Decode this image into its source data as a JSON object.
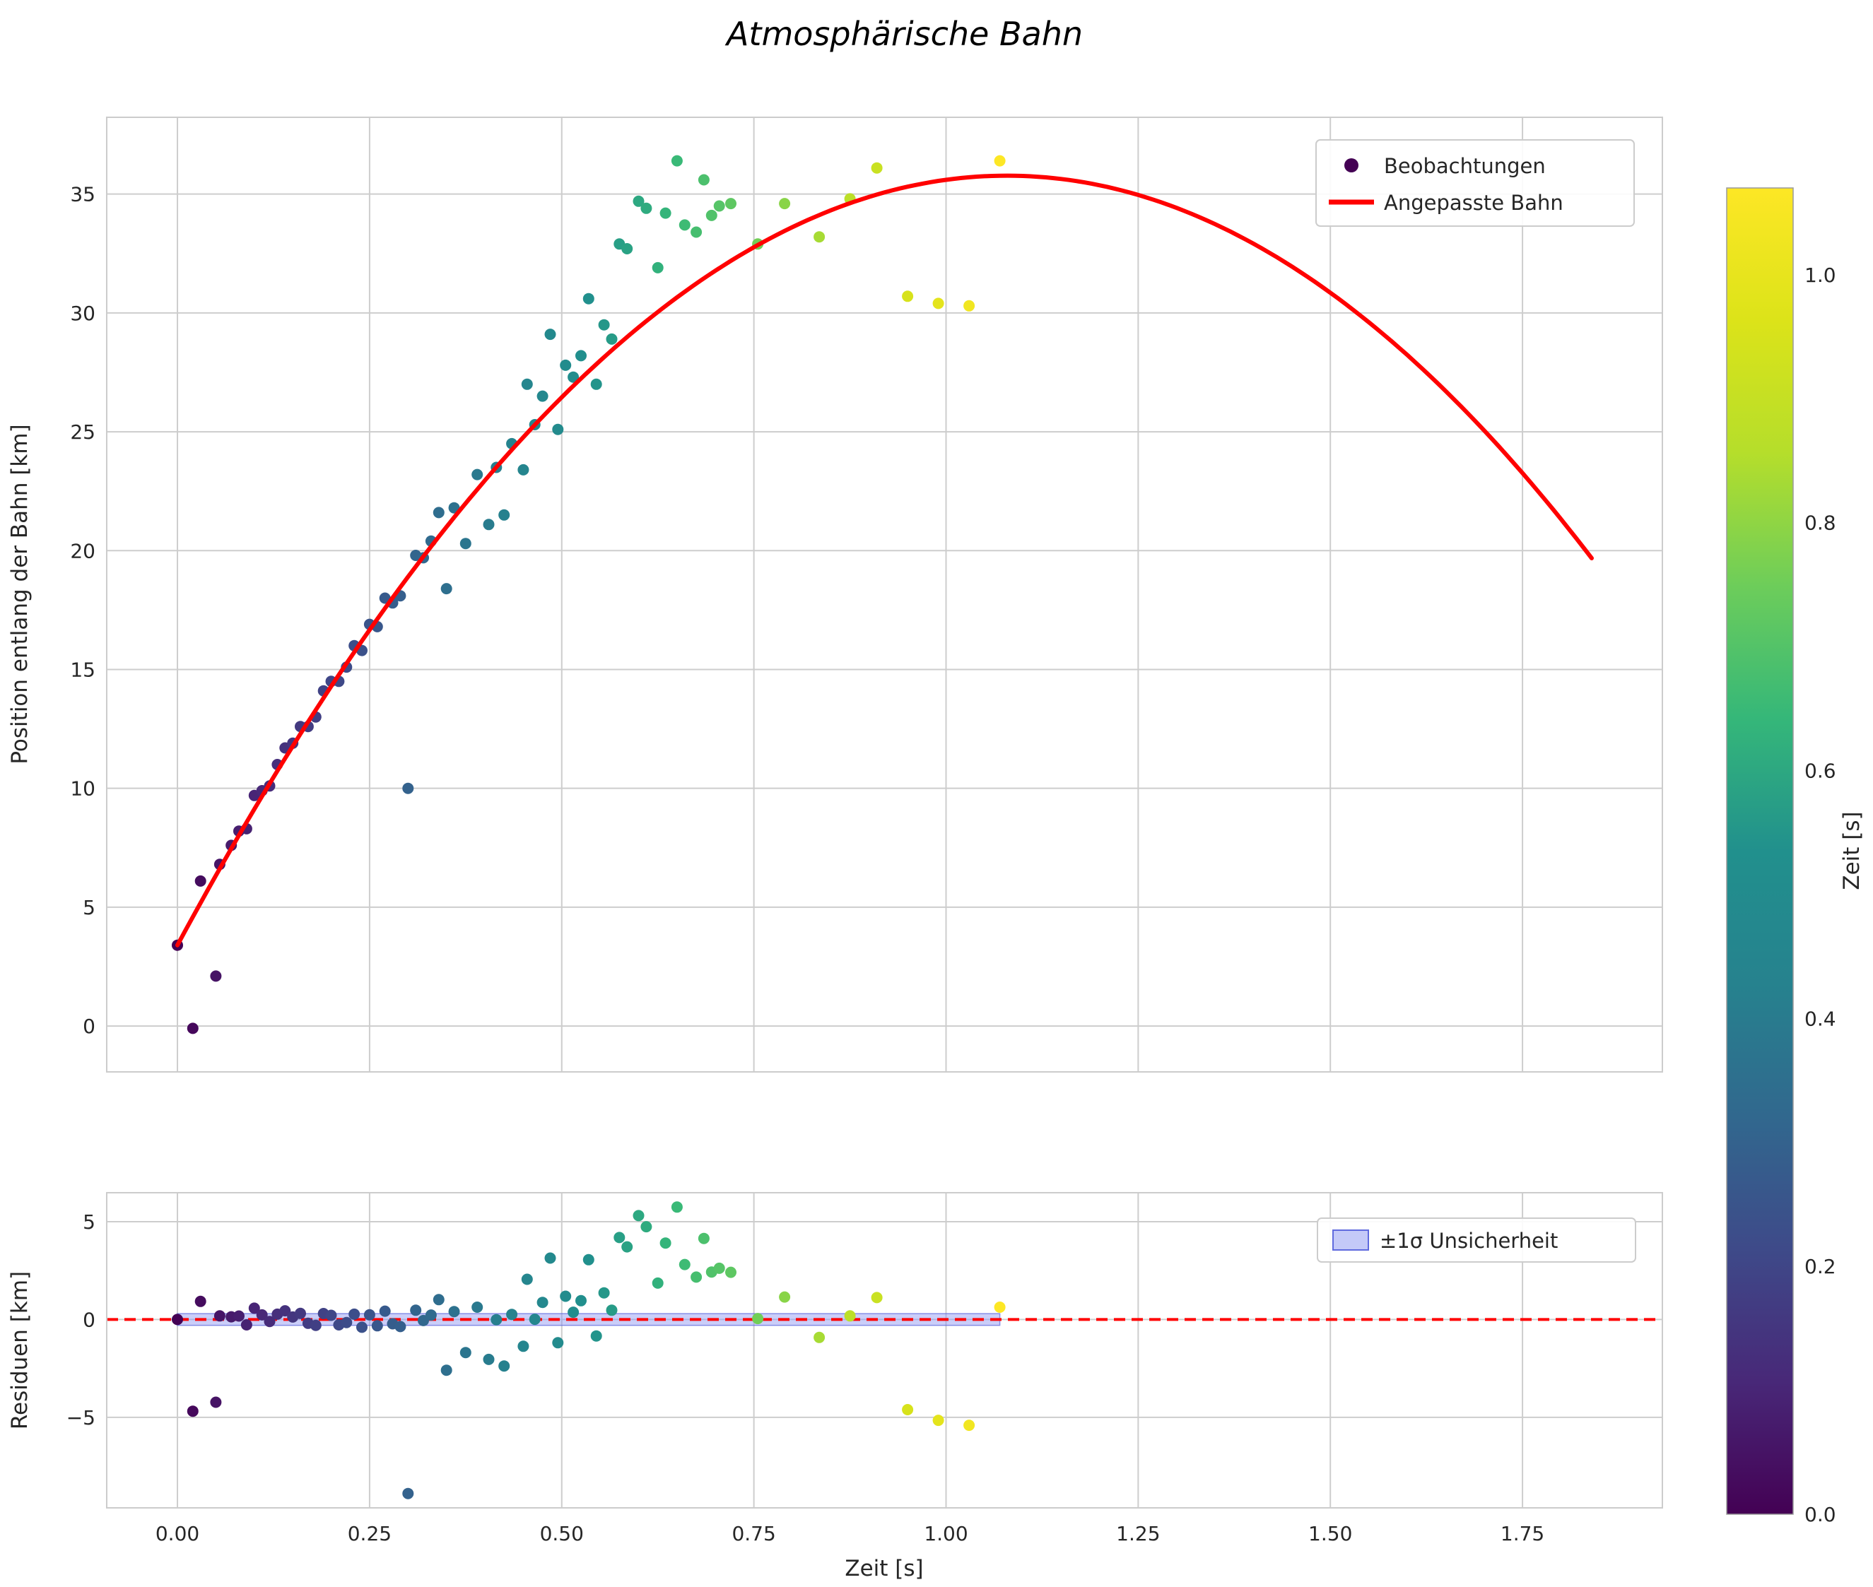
{
  "chart_data": {
    "type": "scatter",
    "title": "Atmosphärische Bahn",
    "xlim": [
      -0.092,
      1.932
    ],
    "xticks": [
      0.0,
      0.25,
      0.5,
      0.75,
      1.0,
      1.25,
      1.5,
      1.75
    ],
    "xtick_labels": [
      "0.00",
      "0.25",
      "0.50",
      "0.75",
      "1.00",
      "1.25",
      "1.50",
      "1.75"
    ],
    "main_plot": {
      "ylabel": "Position entlang der Bahn [km]",
      "ylim": [
        -1.93,
        38.23
      ],
      "yticks": [
        0,
        5,
        10,
        15,
        20,
        25,
        30,
        35
      ],
      "ytick_labels": [
        "0",
        "5",
        "10",
        "15",
        "20",
        "25",
        "30",
        "35"
      ],
      "legend": {
        "observations_label": "Beobachtungen",
        "fit_label": "Angepasste Bahn"
      },
      "legend_point_color": "#440154",
      "fit_color": "#ff0000",
      "fit_curve": {
        "a": 3.4,
        "b": 60.0,
        "c": -27.8,
        "t_min": 0.0,
        "t_max": 1.84
      },
      "points": [
        [
          0.0,
          3.4
        ],
        [
          0.02,
          -0.1
        ],
        [
          0.03,
          6.1
        ],
        [
          0.05,
          2.1
        ],
        [
          0.055,
          6.8
        ],
        [
          0.07,
          7.6
        ],
        [
          0.08,
          8.2
        ],
        [
          0.09,
          8.3
        ],
        [
          0.1,
          9.7
        ],
        [
          0.11,
          9.9
        ],
        [
          0.12,
          10.1
        ],
        [
          0.13,
          11.0
        ],
        [
          0.14,
          11.7
        ],
        [
          0.15,
          11.9
        ],
        [
          0.16,
          12.6
        ],
        [
          0.17,
          12.6
        ],
        [
          0.18,
          13.0
        ],
        [
          0.19,
          14.1
        ],
        [
          0.2,
          14.5
        ],
        [
          0.21,
          14.5
        ],
        [
          0.22,
          15.1
        ],
        [
          0.23,
          16.0
        ],
        [
          0.24,
          15.8
        ],
        [
          0.25,
          16.9
        ],
        [
          0.26,
          16.8
        ],
        [
          0.27,
          18.0
        ],
        [
          0.28,
          17.8
        ],
        [
          0.29,
          18.1
        ],
        [
          0.3,
          10.0
        ],
        [
          0.31,
          19.8
        ],
        [
          0.32,
          19.7
        ],
        [
          0.33,
          20.4
        ],
        [
          0.34,
          21.6
        ],
        [
          0.35,
          18.4
        ],
        [
          0.36,
          21.8
        ],
        [
          0.375,
          20.3
        ],
        [
          0.39,
          23.2
        ],
        [
          0.405,
          21.1
        ],
        [
          0.415,
          23.5
        ],
        [
          0.425,
          21.5
        ],
        [
          0.435,
          24.5
        ],
        [
          0.45,
          23.4
        ],
        [
          0.455,
          27.0
        ],
        [
          0.465,
          25.3
        ],
        [
          0.475,
          26.5
        ],
        [
          0.485,
          29.1
        ],
        [
          0.495,
          25.1
        ],
        [
          0.505,
          27.8
        ],
        [
          0.515,
          27.3
        ],
        [
          0.525,
          28.2
        ],
        [
          0.535,
          30.6
        ],
        [
          0.545,
          27.0
        ],
        [
          0.555,
          29.5
        ],
        [
          0.565,
          28.9
        ],
        [
          0.575,
          32.9
        ],
        [
          0.585,
          32.7
        ],
        [
          0.6,
          34.7
        ],
        [
          0.61,
          34.4
        ],
        [
          0.625,
          31.9
        ],
        [
          0.635,
          34.2
        ],
        [
          0.65,
          36.4
        ],
        [
          0.66,
          33.7
        ],
        [
          0.675,
          33.4
        ],
        [
          0.685,
          35.6
        ],
        [
          0.695,
          34.1
        ],
        [
          0.705,
          34.5
        ],
        [
          0.72,
          34.6
        ],
        [
          0.755,
          32.9
        ],
        [
          0.79,
          34.6
        ],
        [
          0.835,
          33.2
        ],
        [
          0.875,
          34.8
        ],
        [
          0.91,
          36.1
        ],
        [
          0.95,
          30.7
        ],
        [
          0.99,
          30.4
        ],
        [
          1.03,
          30.3
        ],
        [
          1.07,
          36.4
        ]
      ]
    },
    "residual_plot": {
      "ylabel": "Residuen [km]",
      "xlabel": "Zeit [s]",
      "ylim": [
        -9.63,
        6.48
      ],
      "yticks": [
        -5,
        0,
        5
      ],
      "ytick_labels": [
        "−5",
        "0",
        "5"
      ],
      "zero_line_color": "#ff0000",
      "band": {
        "label": "±1σ Unsicherheit",
        "halfwidth": 0.3,
        "x_range": [
          0.0,
          1.07
        ],
        "fill": "#8a93f2",
        "fill_opacity": 0.45,
        "edge": "#5f6ade"
      }
    },
    "colorbar": {
      "label": "Zeit [s]",
      "vmin": 0.0,
      "vmax": 1.07,
      "ticks": [
        0.0,
        0.2,
        0.4,
        0.6,
        0.8,
        1.0
      ],
      "tick_labels": [
        "0.0",
        "0.2",
        "0.4",
        "0.6",
        "0.8",
        "1.0"
      ],
      "colormap": "viridis",
      "stops": [
        "#440154",
        "#482878",
        "#3e4a89",
        "#31688e",
        "#26828e",
        "#21908d",
        "#35b779",
        "#6dcd5a",
        "#b5de2b",
        "#dce319",
        "#fde725"
      ]
    },
    "style": {
      "background": "#ffffff",
      "grid_color": "#cdcdcd",
      "frame_color": "#cccccc",
      "text_color": "#262626"
    }
  }
}
